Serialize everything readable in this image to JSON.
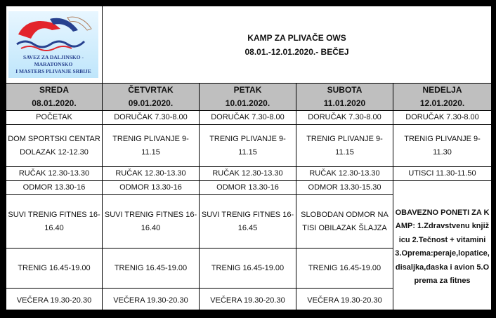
{
  "logo": {
    "line1": "SAVEZ ZA DALJINSKO - MARATONSKO",
    "line2": "I MASTERS PLIVANJE SRBIJE",
    "colors": [
      "#e3242b",
      "#27418f"
    ]
  },
  "header": {
    "title": "KAMP ZA PLIVAČE OWS",
    "subtitle": "08.01.-12.01.2020.- BEČEJ"
  },
  "days": [
    {
      "name": "SREDA",
      "date": "08.01.2020."
    },
    {
      "name": "ČETVRTAK",
      "date": "09.01.2020."
    },
    {
      "name": "PETAK",
      "date": "10.01.2020."
    },
    {
      "name": "SUBOTA",
      "date": "11.01.2020"
    },
    {
      "name": "NEDELJA",
      "date": "12.01.2020."
    }
  ],
  "rows": [
    [
      "POČETAK",
      "DORUČAK 7.30-8.00",
      "DORUČAK 7.30-8.00",
      "DORUČAK 7.30-8.00",
      "DORUČAK 7.30-8.00"
    ],
    [
      "DOM SPORTSKI CENTAR DOLAZAK 12-12.30",
      "TRENIG PLIVANJE 9-11.15",
      "TRENIG PLIVANJE 9-11.15",
      "TRENIG PLIVANJE 9-11.15",
      "TRENIG PLIVANJE 9-11.30"
    ],
    [
      "RUČAK 12.30-13.30",
      "RUČAK 12.30-13.30",
      "RUČAK 12.30-13.30",
      "RUČAK 12.30-13.30",
      "UTISCI  11.30-11.50"
    ],
    [
      "ODMOR 13.30-16",
      "ODMOR 13.30-16",
      "ODMOR 13.30-16",
      "ODMOR 13.30-15.30"
    ],
    [
      "SUVI TRENIG FITNES 16-16.40",
      "SUVI TRENIG FITNES 16-16.40",
      "SUVI TRENIG FITNES 16-16.45",
      "SLOBODAN ODMOR NA TISI OBILAZAK ŠLAJZA"
    ],
    [
      "TRENIG 16.45-19.00",
      "TRENIG 16.45-19.00",
      "TRENIG 16.45-19.00",
      "TRENIG 16.45-19.00"
    ],
    [
      "VEČERA  19.30-20.30",
      "VEČERA  19.30-20.30",
      "VEČERA  19.30-20.30",
      "VEČERA  19.30-20.30"
    ]
  ],
  "notes": "OBAVEZNO PONETI ZA KAMP: 1.Zdravstvenu knjižicu 2.Tečnost + vitamini 3.Oprema:peraje,lopatice,disaljka,daska i avion 5.Oprema za fitnes"
}
